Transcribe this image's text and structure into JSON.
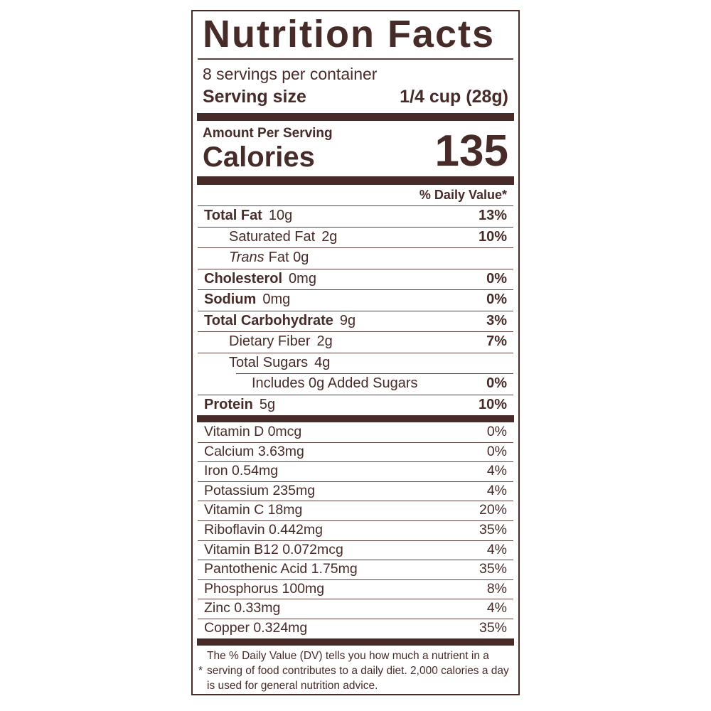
{
  "theme": {
    "text_brown": "#472b29",
    "hairline_brown": "#5d3f3b",
    "background": "#ffffff"
  },
  "label": {
    "title": "Nutrition Facts",
    "servings_per_container": "8 servings per container",
    "serving_size_label": "Serving size",
    "serving_size_value": "1/4 cup (28g)",
    "amount_per_serving": "Amount Per Serving",
    "calories_label": "Calories",
    "calories_value": "135",
    "daily_value_header": "% Daily Value*",
    "main_rows": [
      {
        "name": "Total Fat",
        "amount": "10g",
        "dv": "13%"
      },
      {
        "name": "Saturated Fat",
        "amount": "2g",
        "dv": "10%"
      },
      {
        "name_italic": "Trans",
        "name_rest": "Fat 0g"
      },
      {
        "name": "Cholesterol",
        "amount": "0mg",
        "dv": "0%"
      },
      {
        "name": "Sodium",
        "amount": "0mg",
        "dv": "0%"
      },
      {
        "name": "Total Carbohydrate",
        "amount": "9g",
        "dv": "3%"
      },
      {
        "name": "Dietary Fiber",
        "amount": "2g",
        "dv": "7%"
      },
      {
        "name": "Total Sugars",
        "amount": "4g"
      },
      {
        "name": "Includes 0g Added Sugars",
        "dv": "0%"
      },
      {
        "name": "Protein",
        "amount": "5g",
        "dv": "10%"
      }
    ],
    "vitamin_rows": [
      {
        "name": "Vitamin D 0mcg",
        "dv": "0%"
      },
      {
        "name": "Calcium 3.63mg",
        "dv": "0%"
      },
      {
        "name": "Iron 0.54mg",
        "dv": "4%"
      },
      {
        "name": "Potassium 235mg",
        "dv": "4%"
      },
      {
        "name": "Vitamin C 18mg",
        "dv": "20%"
      },
      {
        "name": "Riboflavin 0.442mg",
        "dv": "35%"
      },
      {
        "name": "Vitamin B12 0.072mcg",
        "dv": "4%"
      },
      {
        "name": "Pantothenic Acid 1.75mg",
        "dv": "35%"
      },
      {
        "name": "Phosphorus 100mg",
        "dv": "8%"
      },
      {
        "name": "Zinc 0.33mg",
        "dv": "4%"
      },
      {
        "name": "Copper 0.324mg",
        "dv": "35%"
      }
    ],
    "footnote": {
      "asterisk": "*",
      "text": "The % Daily Value (DV) tells you how much a nutrient in a serving of food contributes to a daily diet. 2,000 calories a day is used for general nutrition advice."
    }
  }
}
